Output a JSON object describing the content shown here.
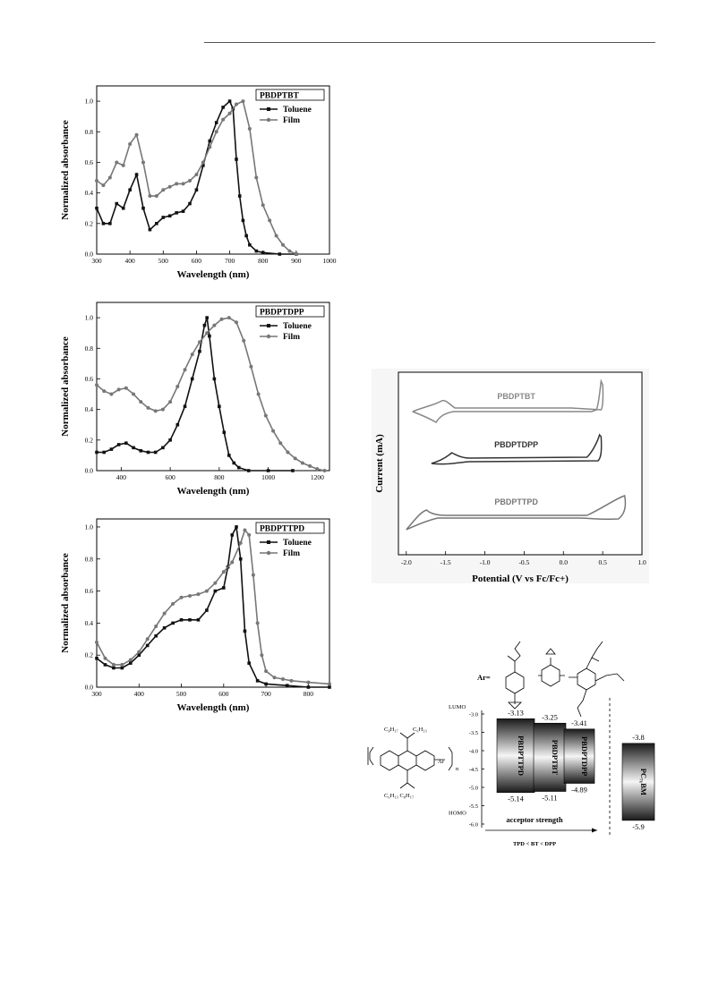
{
  "chart_data": [
    {
      "type": "line",
      "legend_title": "PBDPTBT",
      "xlabel": "Wavelength (nm)",
      "ylabel": "Normalized absorbance",
      "xlim": [
        300,
        1000
      ],
      "ylim": [
        0,
        1.1
      ],
      "xticks": [
        300,
        400,
        500,
        600,
        700,
        800,
        900,
        1000
      ],
      "yticks": [
        0.0,
        0.2,
        0.4,
        0.6,
        0.8,
        1.0
      ],
      "legend_position": "top-right",
      "series": [
        {
          "name": "Toluene",
          "marker": "square",
          "color": "#111111",
          "points": [
            [
              300,
              0.3
            ],
            [
              320,
              0.2
            ],
            [
              340,
              0.2
            ],
            [
              360,
              0.33
            ],
            [
              380,
              0.3
            ],
            [
              400,
              0.42
            ],
            [
              420,
              0.52
            ],
            [
              440,
              0.3
            ],
            [
              460,
              0.16
            ],
            [
              480,
              0.2
            ],
            [
              500,
              0.24
            ],
            [
              520,
              0.25
            ],
            [
              540,
              0.27
            ],
            [
              560,
              0.28
            ],
            [
              580,
              0.33
            ],
            [
              600,
              0.42
            ],
            [
              620,
              0.58
            ],
            [
              640,
              0.74
            ],
            [
              660,
              0.86
            ],
            [
              680,
              0.96
            ],
            [
              700,
              1.0
            ],
            [
              710,
              0.95
            ],
            [
              720,
              0.62
            ],
            [
              730,
              0.38
            ],
            [
              740,
              0.22
            ],
            [
              750,
              0.12
            ],
            [
              760,
              0.06
            ],
            [
              780,
              0.02
            ],
            [
              800,
              0.01
            ],
            [
              850,
              0.0
            ],
            [
              900,
              0.0
            ]
          ]
        },
        {
          "name": "Film",
          "marker": "circle",
          "color": "#777777",
          "points": [
            [
              300,
              0.48
            ],
            [
              320,
              0.45
            ],
            [
              340,
              0.5
            ],
            [
              360,
              0.6
            ],
            [
              380,
              0.58
            ],
            [
              400,
              0.72
            ],
            [
              420,
              0.78
            ],
            [
              440,
              0.6
            ],
            [
              460,
              0.38
            ],
            [
              480,
              0.38
            ],
            [
              500,
              0.42
            ],
            [
              520,
              0.44
            ],
            [
              540,
              0.46
            ],
            [
              560,
              0.46
            ],
            [
              580,
              0.48
            ],
            [
              600,
              0.52
            ],
            [
              620,
              0.6
            ],
            [
              640,
              0.7
            ],
            [
              660,
              0.8
            ],
            [
              680,
              0.88
            ],
            [
              700,
              0.92
            ],
            [
              720,
              0.98
            ],
            [
              740,
              1.0
            ],
            [
              760,
              0.82
            ],
            [
              780,
              0.5
            ],
            [
              800,
              0.32
            ],
            [
              820,
              0.22
            ],
            [
              840,
              0.12
            ],
            [
              860,
              0.06
            ],
            [
              880,
              0.02
            ],
            [
              900,
              0.0
            ]
          ]
        }
      ]
    },
    {
      "type": "line",
      "legend_title": "PBDPTDPP",
      "xlabel": "Wavelength (nm)",
      "ylabel": "Normalized absorbance",
      "xlim": [
        300,
        1250
      ],
      "ylim": [
        0,
        1.1
      ],
      "xticks": [
        400,
        600,
        800,
        1000,
        1200
      ],
      "yticks": [
        0.0,
        0.2,
        0.4,
        0.6,
        0.8,
        1.0
      ],
      "legend_position": "top-right",
      "series": [
        {
          "name": "Toluene",
          "marker": "square",
          "color": "#111111",
          "points": [
            [
              300,
              0.12
            ],
            [
              330,
              0.12
            ],
            [
              360,
              0.14
            ],
            [
              390,
              0.17
            ],
            [
              420,
              0.18
            ],
            [
              450,
              0.15
            ],
            [
              480,
              0.13
            ],
            [
              510,
              0.12
            ],
            [
              540,
              0.12
            ],
            [
              570,
              0.15
            ],
            [
              600,
              0.2
            ],
            [
              630,
              0.3
            ],
            [
              660,
              0.42
            ],
            [
              690,
              0.6
            ],
            [
              720,
              0.78
            ],
            [
              740,
              0.95
            ],
            [
              750,
              1.0
            ],
            [
              760,
              0.88
            ],
            [
              780,
              0.6
            ],
            [
              800,
              0.42
            ],
            [
              820,
              0.25
            ],
            [
              840,
              0.1
            ],
            [
              860,
              0.05
            ],
            [
              880,
              0.02
            ],
            [
              920,
              0.0
            ],
            [
              1000,
              0.0
            ],
            [
              1100,
              0.0
            ]
          ]
        },
        {
          "name": "Film",
          "marker": "circle",
          "color": "#777777",
          "points": [
            [
              300,
              0.56
            ],
            [
              330,
              0.52
            ],
            [
              360,
              0.5
            ],
            [
              390,
              0.53
            ],
            [
              420,
              0.54
            ],
            [
              450,
              0.5
            ],
            [
              480,
              0.45
            ],
            [
              510,
              0.41
            ],
            [
              540,
              0.39
            ],
            [
              570,
              0.4
            ],
            [
              600,
              0.45
            ],
            [
              630,
              0.55
            ],
            [
              660,
              0.66
            ],
            [
              690,
              0.76
            ],
            [
              720,
              0.84
            ],
            [
              750,
              0.9
            ],
            [
              780,
              0.95
            ],
            [
              810,
              0.99
            ],
            [
              840,
              1.0
            ],
            [
              870,
              0.97
            ],
            [
              900,
              0.85
            ],
            [
              930,
              0.68
            ],
            [
              960,
              0.5
            ],
            [
              990,
              0.36
            ],
            [
              1020,
              0.26
            ],
            [
              1050,
              0.18
            ],
            [
              1080,
              0.12
            ],
            [
              1110,
              0.08
            ],
            [
              1140,
              0.05
            ],
            [
              1170,
              0.03
            ],
            [
              1200,
              0.01
            ],
            [
              1230,
              0.0
            ]
          ]
        }
      ]
    },
    {
      "type": "line",
      "legend_title": "PBDPTTPD",
      "xlabel": "Wavelength (nm)",
      "ylabel": "Normalized absorbance",
      "xlim": [
        300,
        850
      ],
      "ylim": [
        0,
        1.05
      ],
      "xticks": [
        300,
        400,
        500,
        600,
        700,
        800
      ],
      "yticks": [
        0.0,
        0.2,
        0.4,
        0.6,
        0.8,
        1.0
      ],
      "legend_position": "top-right",
      "series": [
        {
          "name": "Toluene",
          "marker": "square",
          "color": "#111111",
          "points": [
            [
              300,
              0.18
            ],
            [
              320,
              0.14
            ],
            [
              340,
              0.12
            ],
            [
              360,
              0.12
            ],
            [
              380,
              0.15
            ],
            [
              400,
              0.2
            ],
            [
              420,
              0.26
            ],
            [
              440,
              0.32
            ],
            [
              460,
              0.37
            ],
            [
              480,
              0.4
            ],
            [
              500,
              0.42
            ],
            [
              520,
              0.42
            ],
            [
              540,
              0.42
            ],
            [
              560,
              0.48
            ],
            [
              580,
              0.6
            ],
            [
              600,
              0.62
            ],
            [
              610,
              0.75
            ],
            [
              620,
              0.95
            ],
            [
              630,
              1.0
            ],
            [
              640,
              0.8
            ],
            [
              650,
              0.35
            ],
            [
              660,
              0.15
            ],
            [
              680,
              0.04
            ],
            [
              700,
              0.02
            ],
            [
              750,
              0.01
            ],
            [
              800,
              0.0
            ],
            [
              850,
              0.0
            ]
          ]
        },
        {
          "name": "Film",
          "marker": "circle",
          "color": "#777777",
          "points": [
            [
              300,
              0.28
            ],
            [
              320,
              0.18
            ],
            [
              340,
              0.14
            ],
            [
              360,
              0.14
            ],
            [
              380,
              0.17
            ],
            [
              400,
              0.22
            ],
            [
              420,
              0.3
            ],
            [
              440,
              0.38
            ],
            [
              460,
              0.46
            ],
            [
              480,
              0.52
            ],
            [
              500,
              0.56
            ],
            [
              520,
              0.57
            ],
            [
              540,
              0.58
            ],
            [
              560,
              0.6
            ],
            [
              580,
              0.65
            ],
            [
              600,
              0.72
            ],
            [
              620,
              0.78
            ],
            [
              640,
              0.9
            ],
            [
              650,
              0.98
            ],
            [
              660,
              0.95
            ],
            [
              670,
              0.7
            ],
            [
              680,
              0.4
            ],
            [
              690,
              0.2
            ],
            [
              700,
              0.1
            ],
            [
              720,
              0.06
            ],
            [
              740,
              0.05
            ],
            [
              760,
              0.04
            ],
            [
              800,
              0.03
            ],
            [
              850,
              0.02
            ]
          ]
        }
      ]
    },
    {
      "type": "line",
      "xlabel": "Potential (V vs Fc/Fc+)",
      "ylabel": "Current (mA)",
      "xlim": [
        -2.1,
        1.0
      ],
      "xticks": [
        -2.0,
        -1.5,
        -1.0,
        -0.5,
        0.0,
        0.5,
        1.0
      ],
      "series_labels": [
        "PBDPTBT",
        "PBDPTDPP",
        "PBDPTTPD"
      ]
    },
    {
      "type": "bar",
      "ylabel_top": "LUMO",
      "ylabel_bottom": "HOMO",
      "yticks": [
        -3.0,
        -3.5,
        -4.0,
        -4.5,
        -5.0,
        -5.5,
        -6.0
      ],
      "categories": [
        "PBDPTTPD",
        "PBDPTBT",
        "PBDPTDPP",
        "PC71BM"
      ],
      "lumo": [
        -3.13,
        -3.25,
        -3.41,
        -3.8
      ],
      "homo": [
        -5.14,
        -5.11,
        -4.89,
        -5.9
      ],
      "lumo_labels": [
        "-3.13",
        "-3.25",
        "-3.41",
        "-3.8"
      ],
      "homo_labels": [
        "-5.14",
        "-5.11",
        "-4.89",
        "-5.9"
      ],
      "bar_labels": [
        "PBDPTTPD",
        "PBDPTBT",
        "PBDPTDPP",
        "PC₇₁BM"
      ],
      "arrow_label": "acceptor strength",
      "order_label": "TPD < BT < DPP",
      "ar_label": "Ar="
    }
  ],
  "structure_labels": {
    "top_left": "C₈H₁₇",
    "top_right": "C₆H₁₃",
    "bottom": "C₆H₁₃  C₈H₁₇",
    "ar": "Ar",
    "n": "n"
  }
}
